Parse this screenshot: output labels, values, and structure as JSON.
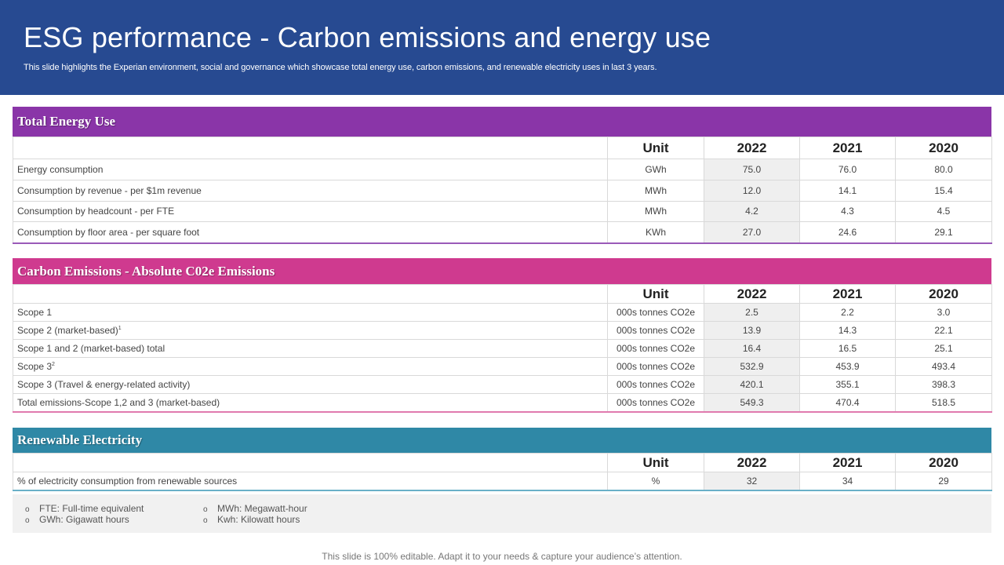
{
  "header": {
    "title": "ESG performance - Carbon emissions and energy use",
    "subtitle": "This slide highlights the Experian environment, social and governance which showcase total energy use, carbon emissions, and renewable electricity uses in last 3 years."
  },
  "columns": {
    "unit": "Unit",
    "y1": "2022",
    "y2": "2021",
    "y3": "2020"
  },
  "energy": {
    "title": "Total Energy Use",
    "rows": [
      {
        "label": "Energy consumption",
        "unit": "GWh",
        "v2022": "75.0",
        "v2021": "76.0",
        "v2020": "80.0"
      },
      {
        "label": "Consumption by revenue - per $1m revenue",
        "unit": "MWh",
        "v2022": "12.0",
        "v2021": "14.1",
        "v2020": "15.4"
      },
      {
        "label": "Consumption by headcount - per FTE",
        "unit": "MWh",
        "v2022": "4.2",
        "v2021": "4.3",
        "v2020": "4.5"
      },
      {
        "label": "Consumption by floor area - per square foot",
        "unit": "KWh",
        "v2022": "27.0",
        "v2021": "24.6",
        "v2020": "29.1"
      }
    ]
  },
  "carbon": {
    "title": "Carbon Emissions - Absolute C02e Emissions",
    "rows": [
      {
        "label": "Scope 1",
        "sup": "",
        "unit": "000s tonnes CO2e",
        "v2022": "2.5",
        "v2021": "2.2",
        "v2020": "3.0"
      },
      {
        "label": "Scope 2 (market-based)",
        "sup": "1",
        "unit": "000s tonnes CO2e",
        "v2022": "13.9",
        "v2021": "14.3",
        "v2020": "22.1"
      },
      {
        "label": "Scope 1 and 2 (market-based) total",
        "sup": "",
        "unit": "000s tonnes CO2e",
        "v2022": "16.4",
        "v2021": "16.5",
        "v2020": "25.1"
      },
      {
        "label": "Scope 3",
        "sup": "2",
        "unit": "000s tonnes CO2e",
        "v2022": "532.9",
        "v2021": "453.9",
        "v2020": "493.4"
      },
      {
        "label": "Scope 3 (Travel & energy-related activity)",
        "sup": "",
        "unit": "000s tonnes CO2e",
        "v2022": "420.1",
        "v2021": "355.1",
        "v2020": "398.3"
      },
      {
        "label": "Total emissions-Scope 1,2 and 3 (market-based)",
        "sup": "",
        "unit": "000s tonnes CO2e",
        "v2022": "549.3",
        "v2021": "470.4",
        "v2020": "518.5"
      }
    ]
  },
  "renewable": {
    "title": "Renewable Electricity",
    "rows": [
      {
        "label": "% of electricity consumption from renewable sources",
        "unit": "%",
        "v2022": "32",
        "v2021": "34",
        "v2020": "29"
      }
    ]
  },
  "notes": {
    "bullet": "o",
    "items": [
      "FTE: Full-time equivalent",
      "GWh: Gigawatt hours",
      "MWh: Megawatt-hour",
      "Kwh: Kilowatt hours"
    ]
  },
  "footer": "This slide is 100% editable. Adapt it to your needs & capture your audience’s attention.",
  "colors": {
    "header_bg": "#274a91",
    "energy_band": "#8a35a8",
    "carbon_band": "#cf3a8f",
    "renewable_band": "#2f88a6"
  }
}
